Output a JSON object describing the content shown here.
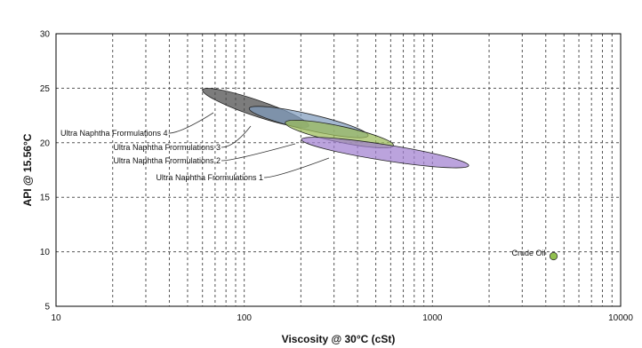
{
  "chart_data": {
    "type": "scatter",
    "title": "",
    "xlabel": "Viscosity @ 30°C (cSt)",
    "ylabel": "API @ 15.56°C",
    "xscale": "log",
    "xlim": [
      10,
      10000
    ],
    "ylim": [
      5,
      30
    ],
    "x_ticks": [
      10,
      100,
      1000,
      10000
    ],
    "x_tick_labels": [
      "10",
      "100",
      "1000",
      "10000"
    ],
    "y_ticks": [
      5,
      10,
      15,
      20,
      25,
      30
    ],
    "y_tick_labels": [
      "5",
      "10",
      "15",
      "20",
      "25",
      "30"
    ],
    "grid": true,
    "legend": "none",
    "regions": [
      {
        "name": "Ultra Naphtha Frormulations 4",
        "x_range": [
          60,
          220
        ],
        "y_range": [
          21.6,
          24.9
        ],
        "x_center": 115,
        "y_center": 23.2,
        "color": "#4a4a4a"
      },
      {
        "name": "Ultra Naphtha Frormulations 3",
        "x_range": [
          105,
          450
        ],
        "y_range": [
          20.6,
          23.1
        ],
        "x_center": 220,
        "y_center": 21.9,
        "color": "#7f9bbd"
      },
      {
        "name": "Ultra Naphtha Frormulations 2",
        "x_range": [
          165,
          620
        ],
        "y_range": [
          19.8,
          21.9
        ],
        "x_center": 320,
        "y_center": 20.8,
        "color": "#9bbb59"
      },
      {
        "name": "Ultra Naphtha Frormulations 1",
        "x_range": [
          200,
          1550
        ],
        "y_range": [
          17.9,
          20.3
        ],
        "x_center": 560,
        "y_center": 19.1,
        "color": "#a17fd0"
      }
    ],
    "points": [
      {
        "name": "Crude Oil",
        "x": 4400,
        "y": 9.6,
        "color": "#92c050"
      }
    ]
  }
}
